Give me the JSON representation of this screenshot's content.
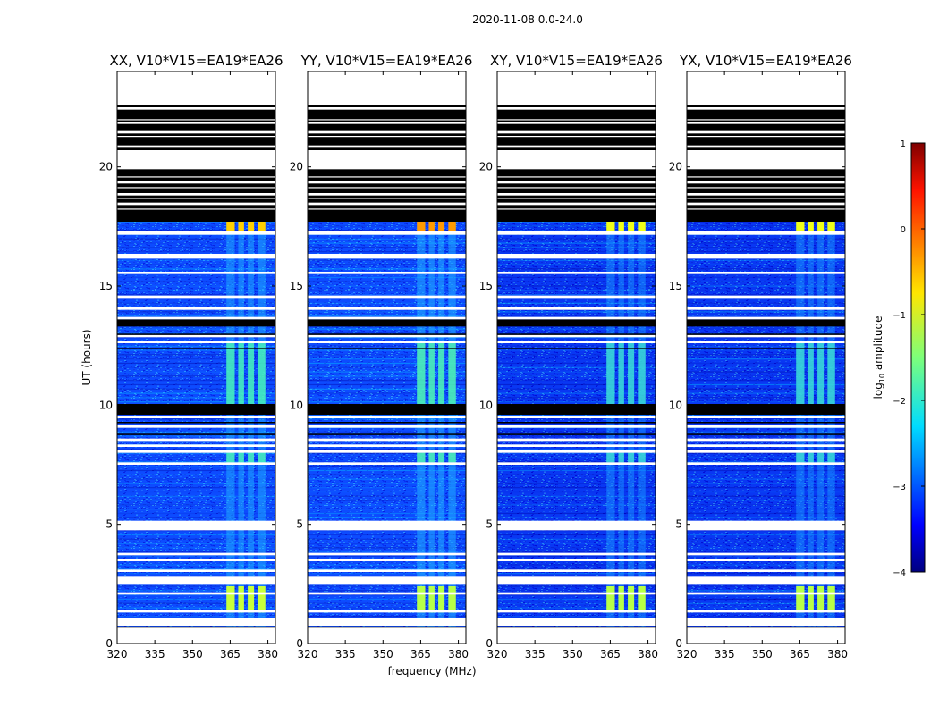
{
  "suptitle": "2020-11-08 0.0-24.0",
  "chart_data": {
    "type": "heatmap",
    "panels": [
      {
        "title": "XX, V10*V15=EA19*EA26",
        "pol": "XX"
      },
      {
        "title": "YY, V10*V15=EA19*EA26",
        "pol": "YY"
      },
      {
        "title": "XY, V10*V15=EA19*EA26",
        "pol": "XY"
      },
      {
        "title": "YX, V10*V15=EA19*EA26",
        "pol": "YX"
      }
    ],
    "xlabel": "frequency (MHz)",
    "ylabel": "UT (hours)",
    "xlim": [
      320,
      383
    ],
    "ylim": [
      0,
      24
    ],
    "xticks": [
      320,
      335,
      350,
      365,
      380
    ],
    "yticks": [
      0,
      5,
      10,
      15,
      20
    ],
    "colorbar": {
      "label": "log10 amplitude",
      "label_base": "log",
      "label_sub": "10",
      "label_rest": " amplitude",
      "range": [
        -4,
        1
      ],
      "ticks": [
        -4,
        -3,
        -2,
        -1,
        0,
        1
      ],
      "tick_labels": [
        "−4",
        "−3",
        "−2",
        "−1",
        "0",
        "1"
      ]
    },
    "flagged_white_hours": [
      [
        22.6,
        24.0
      ],
      [
        22.4,
        22.5
      ],
      [
        21.8,
        21.9
      ],
      [
        21.4,
        21.5
      ],
      [
        20.8,
        20.9
      ],
      [
        19.9,
        20.7
      ],
      [
        19.3,
        19.4
      ],
      [
        18.8,
        18.9
      ],
      [
        18.4,
        18.5
      ],
      [
        17.15,
        17.3
      ],
      [
        16.15,
        16.35
      ],
      [
        15.5,
        15.6
      ],
      [
        14.5,
        14.6
      ],
      [
        14.0,
        14.1
      ],
      [
        13.6,
        13.7
      ],
      [
        12.85,
        12.95
      ],
      [
        12.6,
        12.7
      ],
      [
        9.45,
        9.55
      ],
      [
        9.05,
        9.15
      ],
      [
        8.5,
        8.6
      ],
      [
        8.25,
        8.35
      ],
      [
        8.0,
        8.1
      ],
      [
        7.5,
        7.6
      ],
      [
        4.75,
        5.15
      ],
      [
        3.7,
        3.8
      ],
      [
        3.45,
        3.55
      ],
      [
        3.0,
        3.1
      ],
      [
        2.5,
        2.8
      ],
      [
        2.05,
        2.15
      ],
      [
        1.3,
        1.4
      ],
      [
        0.75,
        1.05
      ],
      [
        0.0,
        0.7
      ]
    ],
    "flagged_black_hours": [
      [
        17.7,
        22.6
      ],
      [
        13.3,
        13.6
      ],
      [
        9.6,
        10.05
      ]
    ],
    "rfi_band_mhz": [
      [
        363.5,
        366.8
      ],
      [
        368.2,
        370.5
      ],
      [
        372.0,
        374.5
      ],
      [
        376.0,
        379.0
      ]
    ],
    "rfi_strong_hours": [
      [
        17.3,
        17.7
      ],
      [
        1.3,
        2.4
      ]
    ],
    "rfi_mid_hours": [
      [
        10.05,
        12.6
      ],
      [
        7.6,
        8.0
      ]
    ]
  }
}
